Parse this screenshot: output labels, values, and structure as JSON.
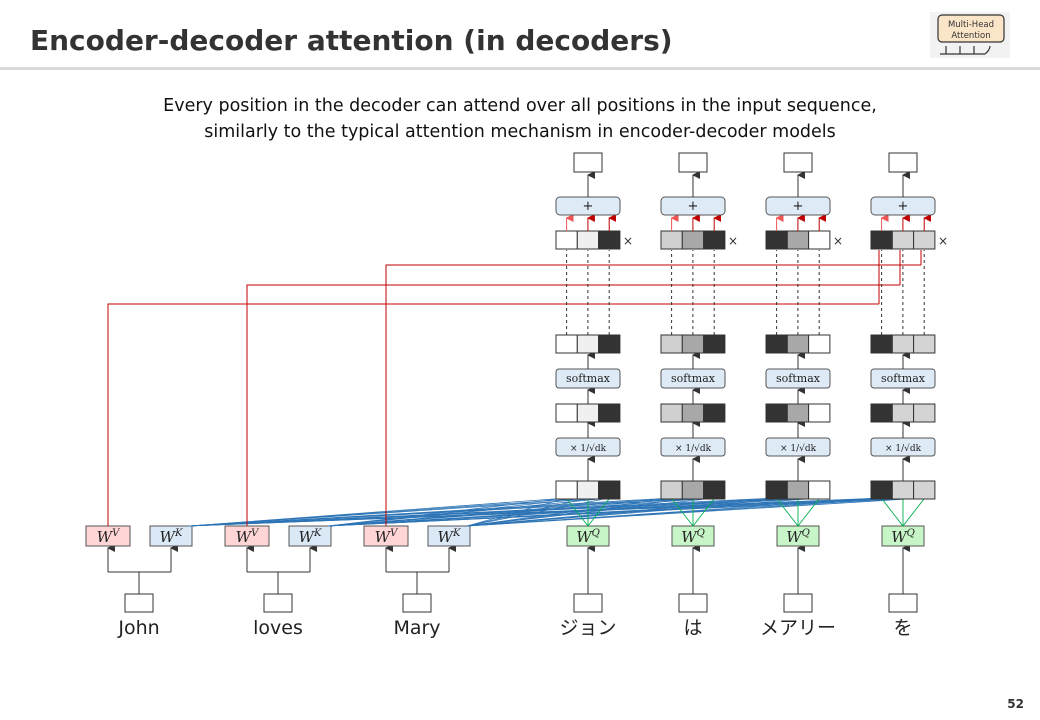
{
  "slide": {
    "title": "Encoder-decoder attention (in decoders)",
    "badge_line1": "Multi-Head",
    "badge_line2": "Attention",
    "caption_line1": "Every position in the decoder can attend over all positions in the input sequence,",
    "caption_line2": "similarly to the typical attention mechanism in encoder-decoder  models",
    "page_number": "52"
  },
  "encoder": {
    "tokens": [
      "John",
      "loves",
      "Mary"
    ],
    "wv_label": "W",
    "wv_sup": "V",
    "wk_label": "W",
    "wk_sup": "K"
  },
  "decoder": {
    "tokens": [
      "ジョン",
      "は",
      "メアリー",
      "を"
    ],
    "wq_label": "W",
    "wq_sup": "Q",
    "softmax_label": "softmax",
    "scale_label": "× 1/√dk",
    "plus_label": "+",
    "times_label": "×"
  },
  "attention_weights": [
    [
      "#ffffff",
      "#f0f0f0",
      "#333333"
    ],
    [
      "#d0d0d0",
      "#a8a8a8",
      "#333333"
    ],
    [
      "#333333",
      "#a8a8a8",
      "#ffffff"
    ],
    [
      "#333333",
      "#d4d4d4",
      "#d4d4d4"
    ]
  ],
  "colors": {
    "wv_fill": "#ffd5d5",
    "wk_fill": "#dbe9f7",
    "wq_fill": "#c8f5c8",
    "value_line": "#c00000",
    "key_line": "#2e75b6",
    "query_line": "#00b050",
    "op_fill": "#deebf7"
  }
}
